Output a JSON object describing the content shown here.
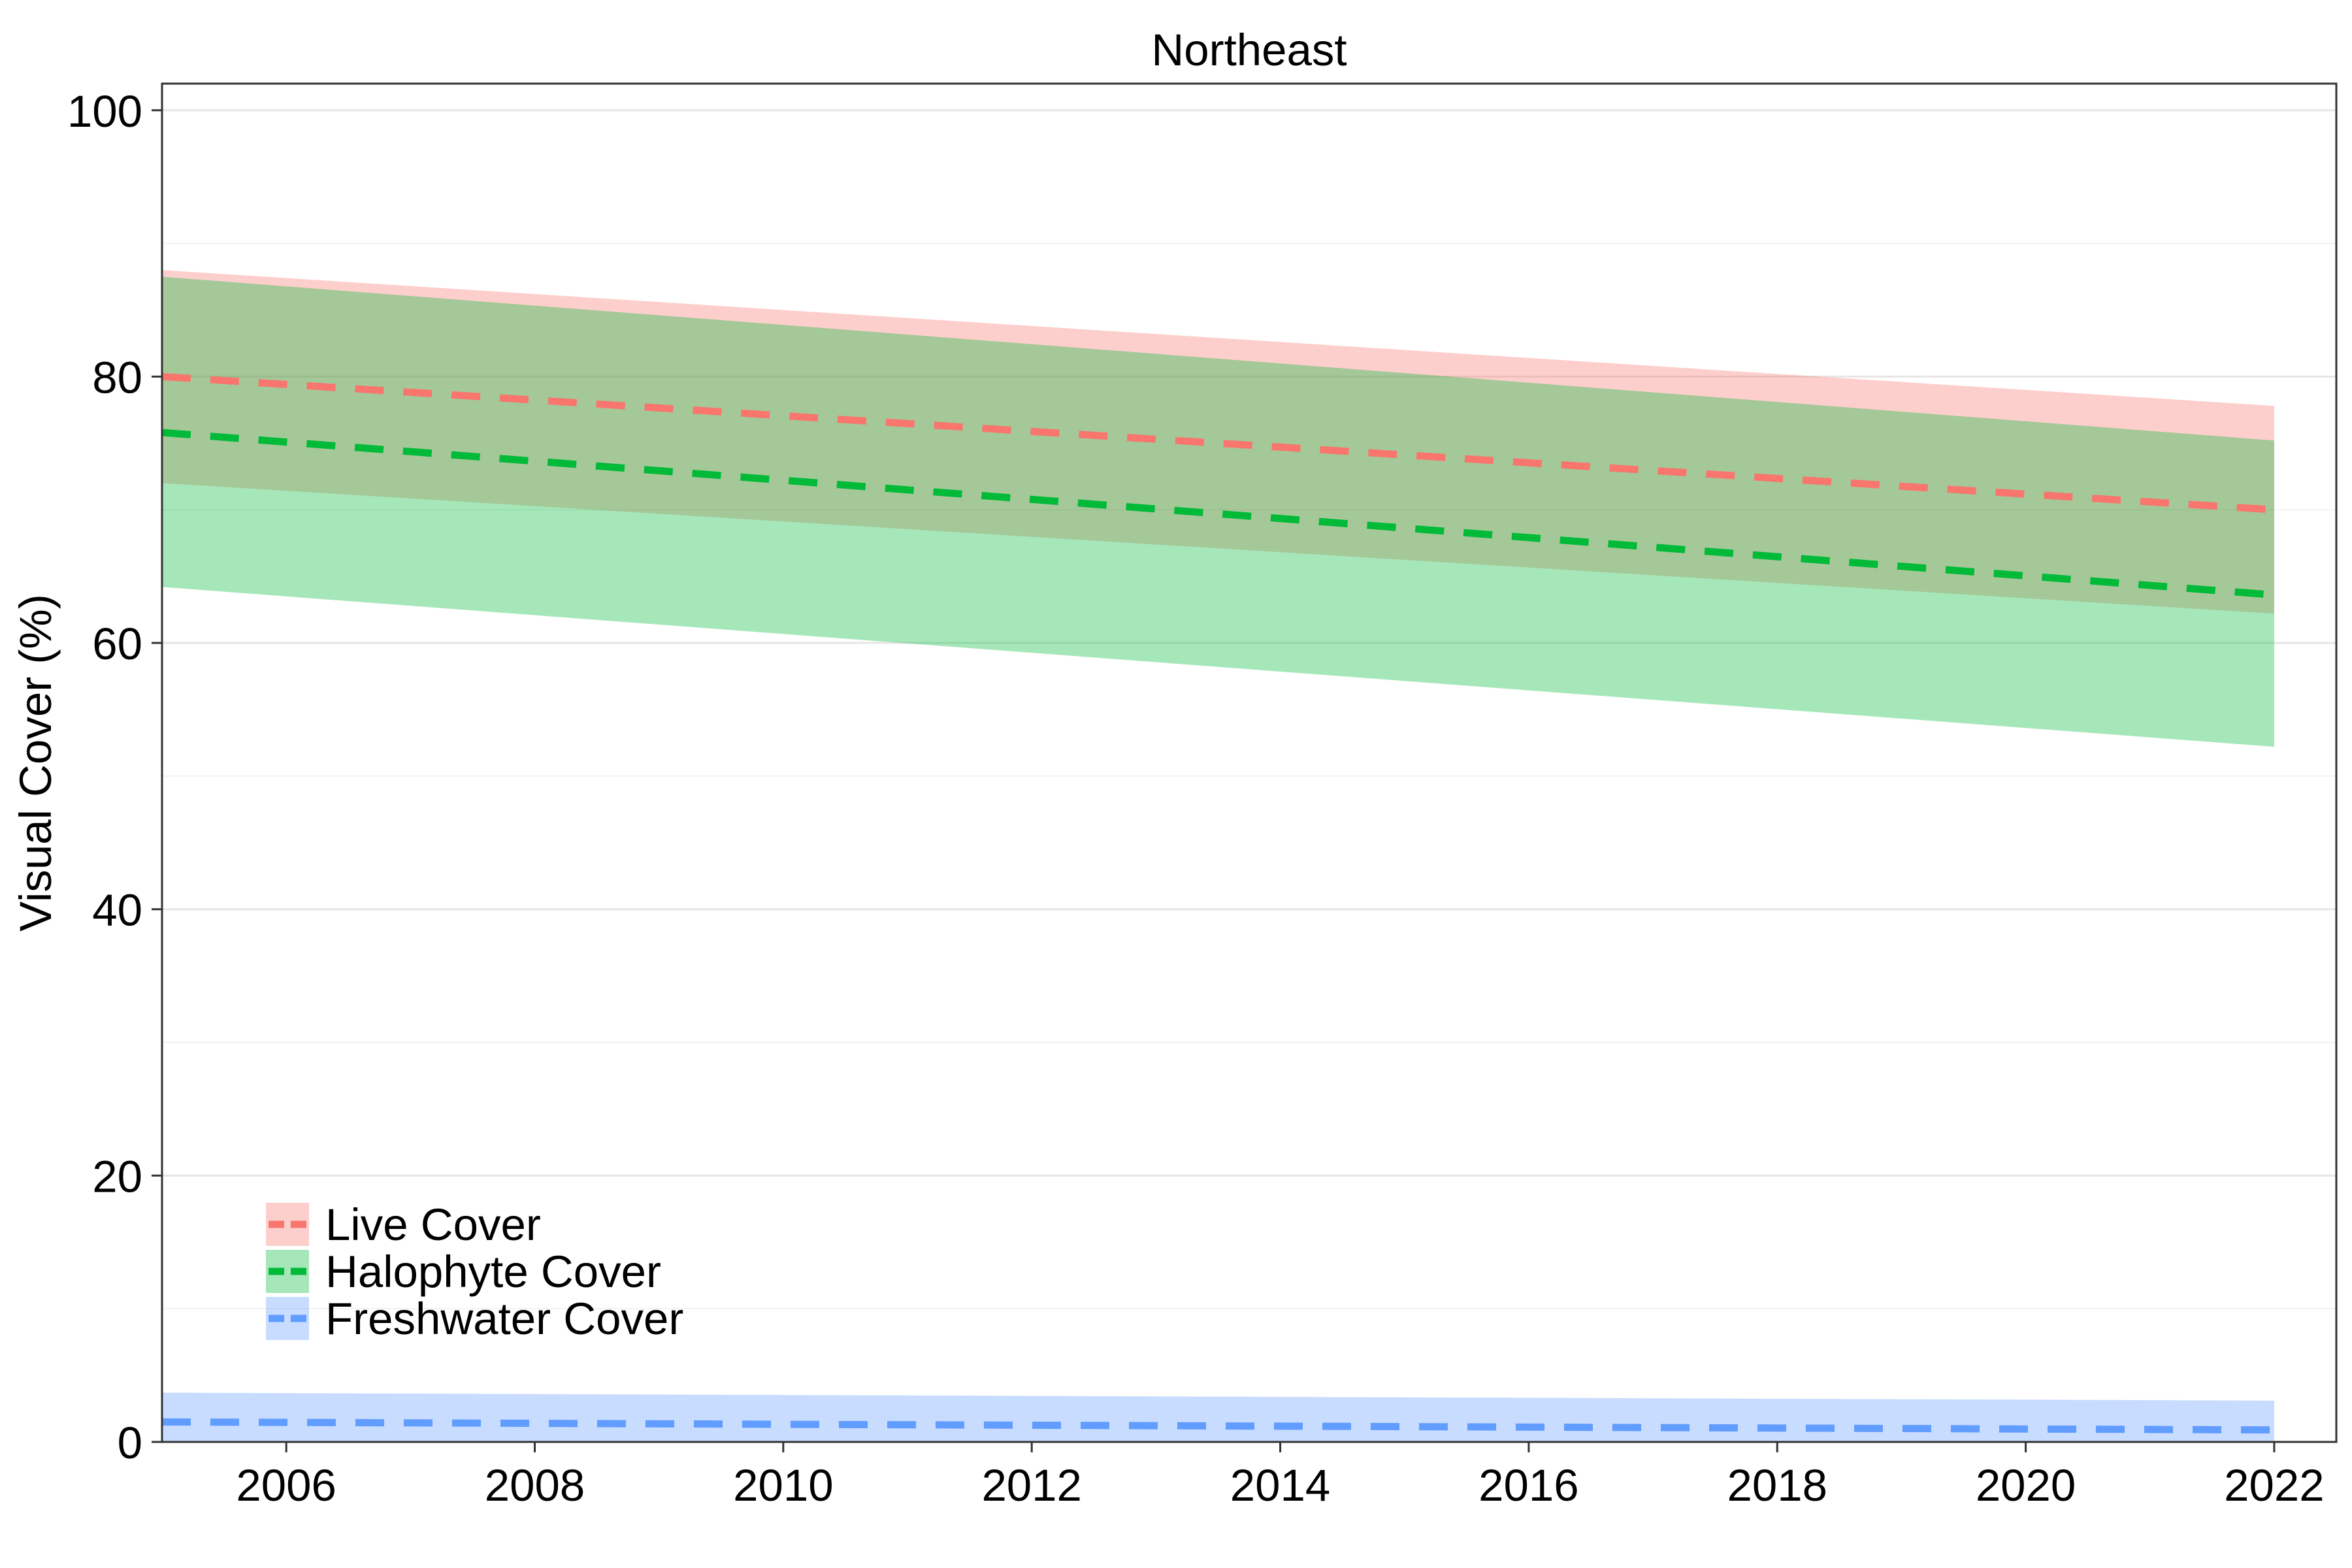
{
  "chart_data": {
    "type": "area",
    "title": "Northeast",
    "xlabel": "",
    "ylabel": "Visual Cover (%)",
    "xlim": [
      2005,
      2022.5
    ],
    "ylim": [
      0,
      102
    ],
    "x_ticks": [
      2006,
      2008,
      2010,
      2012,
      2014,
      2016,
      2018,
      2020,
      2022
    ],
    "y_ticks": [
      0,
      20,
      40,
      60,
      80,
      100
    ],
    "grid": true,
    "legend_position": "bottom-left",
    "series": [
      {
        "name": "Live Cover",
        "color": "#F8766D",
        "band_opacity": 0.35,
        "x": [
          2005,
          2022
        ],
        "fit": [
          80.0,
          70.0
        ],
        "lower": [
          72.0,
          62.2
        ],
        "upper": [
          88.0,
          77.8
        ]
      },
      {
        "name": "Halophyte Cover",
        "color": "#00BA38",
        "band_opacity": 0.35,
        "x": [
          2005,
          2022
        ],
        "fit": [
          75.8,
          63.6
        ],
        "lower": [
          64.2,
          52.2
        ],
        "upper": [
          87.5,
          75.2
        ]
      },
      {
        "name": "Freshwater Cover",
        "color": "#619CFF",
        "band_opacity": 0.35,
        "x": [
          2005,
          2022
        ],
        "fit": [
          1.5,
          0.9
        ],
        "lower": [
          0.0,
          0.0
        ],
        "upper": [
          3.7,
          3.1
        ]
      }
    ]
  }
}
